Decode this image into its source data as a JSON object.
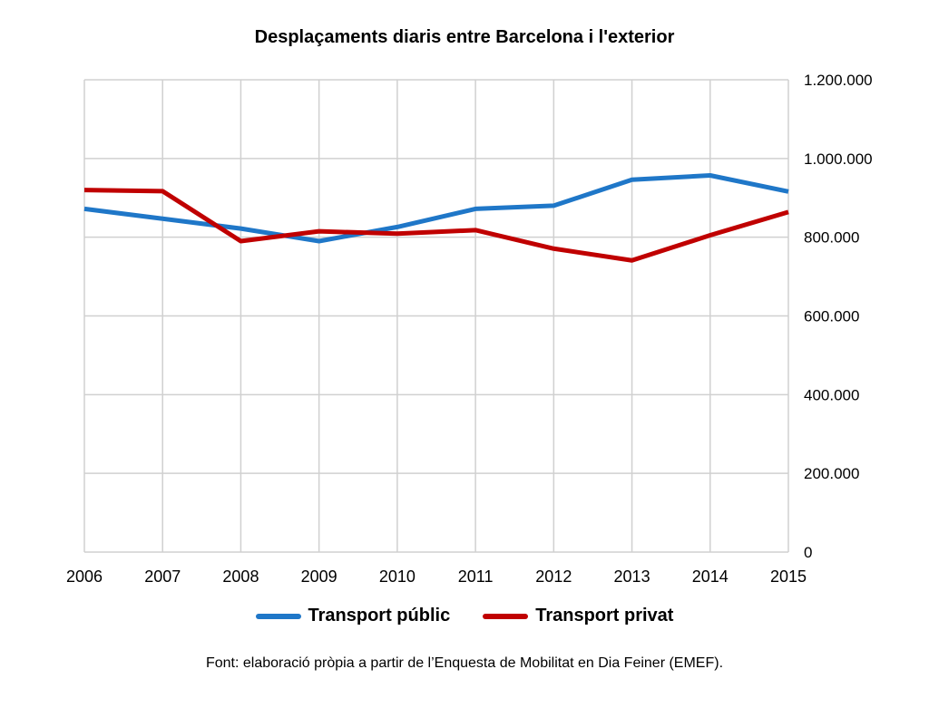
{
  "chart_data": {
    "type": "line",
    "title": "Desplaçaments diaris entre Barcelona i l'exterior",
    "x": [
      "2006",
      "2007",
      "2008",
      "2009",
      "2010",
      "2011",
      "2012",
      "2013",
      "2014",
      "2015"
    ],
    "y_ticks": [
      "0",
      "200.000",
      "400.000",
      "600.000",
      "800.000",
      "1.000.000",
      "1.200.000"
    ],
    "ylim": [
      0,
      1200000
    ],
    "y_axis_side": "right",
    "grid": true,
    "legend_position": "bottom",
    "series": [
      {
        "name": "Transport públic",
        "color": "#1F77C8",
        "values": [
          872000,
          847000,
          822000,
          790000,
          826000,
          872000,
          880000,
          946000,
          957000,
          916000
        ]
      },
      {
        "name": "Transport privat",
        "color": "#C00000",
        "values": [
          920000,
          917000,
          790000,
          815000,
          809000,
          818000,
          771000,
          741000,
          805000,
          864000
        ]
      }
    ],
    "source": "Font: elaboració pròpia a partir de l’Enquesta de Mobilitat en Dia Feiner (EMEF)."
  }
}
